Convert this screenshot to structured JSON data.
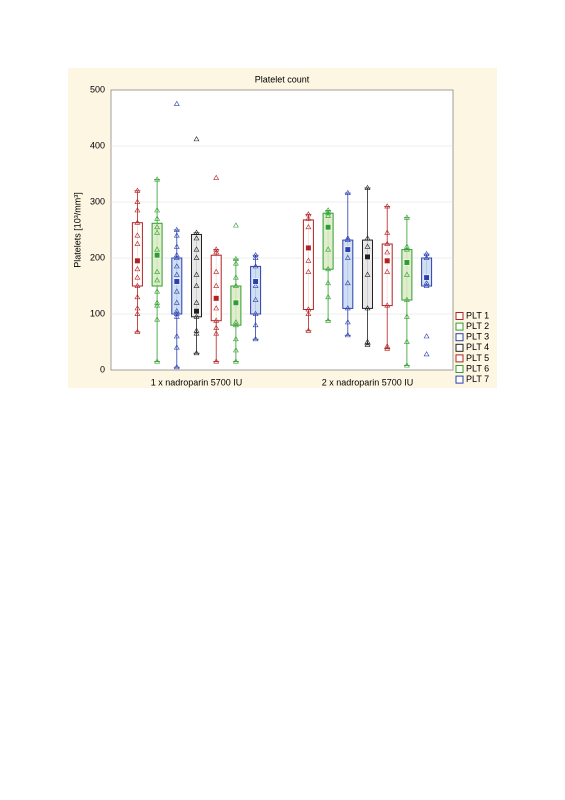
{
  "chart_data": {
    "type": "box",
    "title": "Platelet count",
    "y_label": "Platelets [10³/mm³]",
    "categories": [
      "1 x nadroparin 5700 IU",
      "2 x nadroparin 5700 IU"
    ],
    "ylim": [
      0,
      500
    ],
    "yticks": [
      0,
      100,
      200,
      300,
      400,
      500
    ],
    "grid": true,
    "legend": "right",
    "series": [
      {
        "name": "PLT 1",
        "color": "#b22222",
        "fill": "#ffffff",
        "groups": [
          {
            "min": 68,
            "q1": 150,
            "median": 195,
            "q3": 263,
            "max": 320,
            "points": [
              320,
              300,
              285,
              263,
              240,
              225,
              195,
              180,
              165,
              150,
              130,
              110,
              100,
              68
            ]
          },
          {
            "min": 70,
            "q1": 108,
            "median": 218,
            "q3": 268,
            "max": 278,
            "points": [
              278,
              270,
              255,
              218,
              195,
              175,
              108,
              100,
              70
            ]
          }
        ]
      },
      {
        "name": "PLT 2",
        "color": "#2e9e2e",
        "fill": "#dcebc4",
        "groups": [
          {
            "min": 15,
            "q1": 150,
            "median": 205,
            "q3": 262,
            "max": 340,
            "points": [
              340,
              285,
              270,
              255,
              245,
              215,
              205,
              175,
              160,
              140,
              120,
              115,
              90,
              15
            ]
          },
          {
            "min": 88,
            "q1": 180,
            "median": 255,
            "q3": 280,
            "max": 285,
            "points": [
              285,
              280,
              275,
              255,
              215,
              180,
              155,
              130,
              88
            ]
          }
        ]
      },
      {
        "name": "PLT 3",
        "color": "#2b3fb0",
        "fill": "#c9d9f0",
        "groups": [
          {
            "min": 5,
            "q1": 100,
            "median": 158,
            "q3": 200,
            "max": 250,
            "points": [
              475,
              250,
              240,
              220,
              205,
              200,
              185,
              170,
              158,
              140,
              120,
              105,
              100,
              95,
              60,
              40,
              5
            ]
          },
          {
            "min": 62,
            "q1": 110,
            "median": 215,
            "q3": 232,
            "max": 316,
            "points": [
              316,
              235,
              232,
              215,
              200,
              155,
              110,
              85,
              62
            ]
          }
        ]
      },
      {
        "name": "PLT 4",
        "color": "#222222",
        "fill": "#e4e4e4",
        "groups": [
          {
            "min": 30,
            "q1": 95,
            "median": 105,
            "q3": 242,
            "max": 245,
            "points": [
              412,
              245,
              235,
              215,
              200,
              170,
              150,
              120,
              105,
              95,
              70,
              65,
              30
            ]
          },
          {
            "min": 45,
            "q1": 110,
            "median": 202,
            "q3": 232,
            "max": 325,
            "points": [
              325,
              235,
              220,
              202,
              170,
              110,
              50,
              45
            ]
          }
        ]
      },
      {
        "name": "PLT 5",
        "color": "#b22222",
        "fill": "#ffffff",
        "groups": [
          {
            "min": 15,
            "q1": 88,
            "median": 128,
            "q3": 205,
            "max": 215,
            "points": [
              343,
              215,
              210,
              175,
              150,
              128,
              110,
              88,
              75,
              65,
              15
            ]
          },
          {
            "min": 38,
            "q1": 115,
            "median": 195,
            "q3": 225,
            "max": 292,
            "points": [
              292,
              245,
              225,
              210,
              195,
              175,
              115,
              42,
              38
            ]
          }
        ]
      },
      {
        "name": "PLT 6",
        "color": "#2e9e2e",
        "fill": "#dcebc4",
        "groups": [
          {
            "min": 15,
            "q1": 80,
            "median": 120,
            "q3": 150,
            "max": 198,
            "points": [
              258,
              198,
              190,
              165,
              150,
              120,
              85,
              80,
              55,
              35,
              15
            ]
          },
          {
            "min": 8,
            "q1": 125,
            "median": 192,
            "q3": 215,
            "max": 272,
            "points": [
              272,
              220,
              215,
              192,
              170,
              125,
              95,
              50,
              8
            ]
          }
        ]
      },
      {
        "name": "PLT 7",
        "color": "#2b3fb0",
        "fill": "#c9d9f0",
        "groups": [
          {
            "min": 55,
            "q1": 100,
            "median": 158,
            "q3": 185,
            "max": 205,
            "points": [
              205,
              200,
              185,
              158,
              150,
              125,
              100,
              80,
              55
            ]
          },
          {
            "min": 150,
            "q1": 150,
            "median": 165,
            "q3": 200,
            "max": 207,
            "points": [
              207,
              200,
              165,
              155,
              150,
              60,
              28
            ]
          }
        ]
      }
    ]
  }
}
